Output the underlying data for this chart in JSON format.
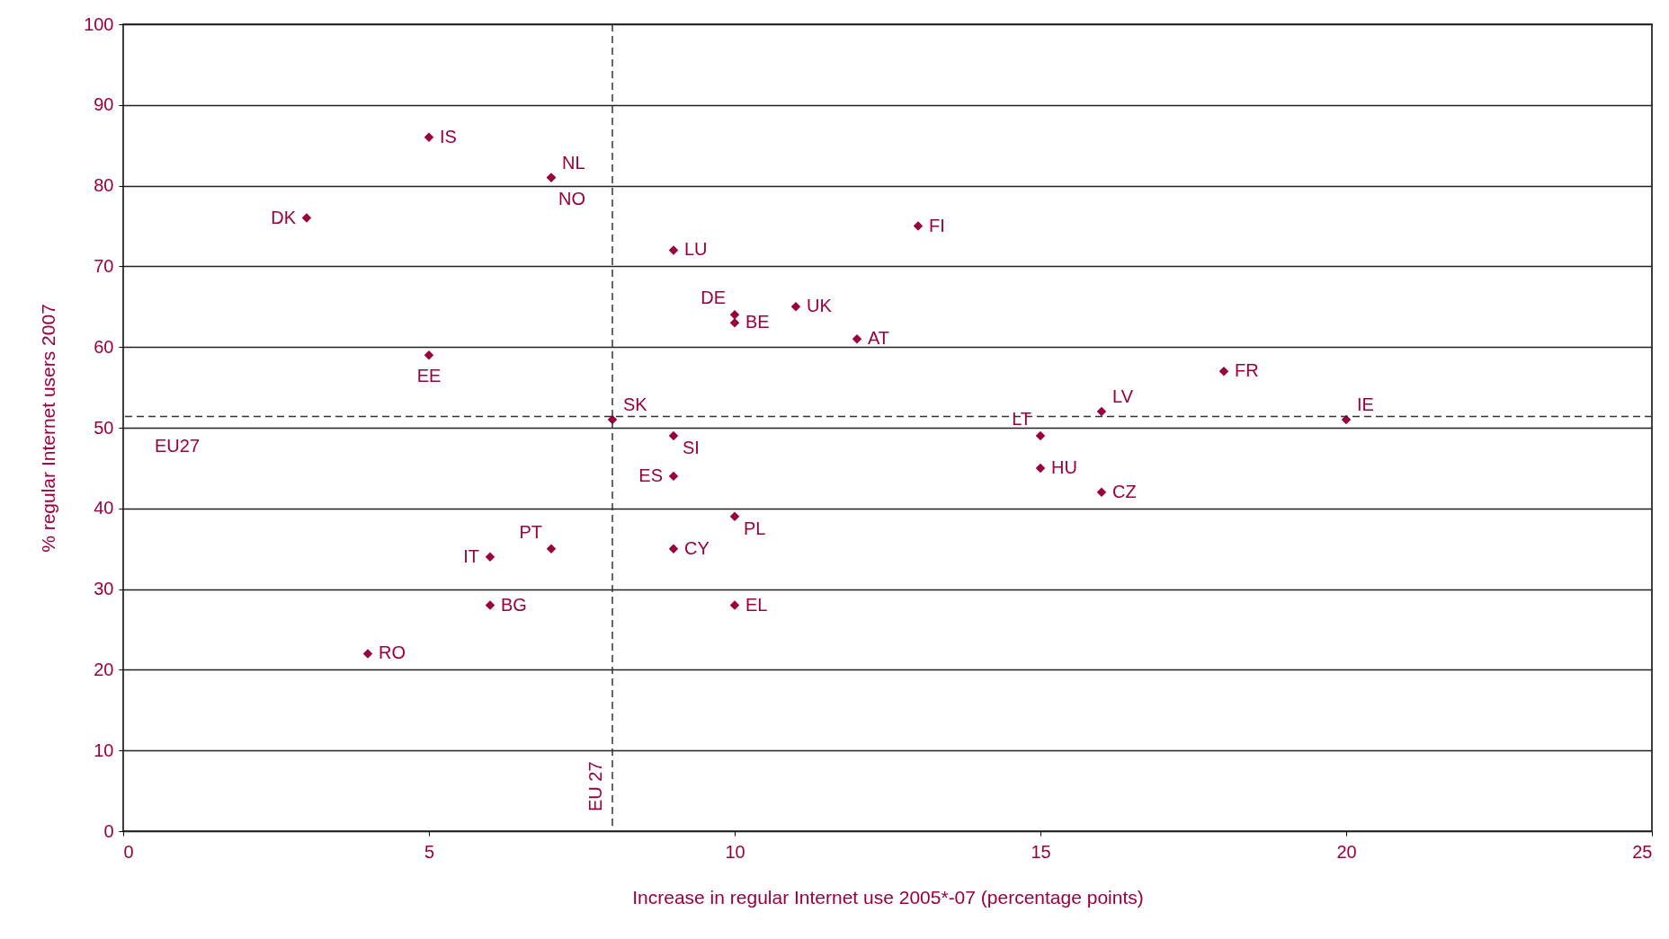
{
  "chart_data": {
    "type": "scatter",
    "xlabel": "Increase in regular Internet use 2005*-07 (percentage points)",
    "ylabel": "% regular Internet users 2007",
    "xlim": [
      0,
      25
    ],
    "xticks": [
      0,
      5,
      10,
      15,
      20,
      25
    ],
    "ylim": [
      0,
      100
    ],
    "yticks": [
      0,
      10,
      20,
      30,
      40,
      50,
      60,
      70,
      80,
      90,
      100
    ],
    "grid": "y",
    "marker": "diamond",
    "series": [
      {
        "color": "#99003d",
        "x": [
          5,
          7,
          7,
          3,
          9,
          13,
          10,
          10,
          11,
          12,
          5,
          18,
          8,
          16,
          20,
          15,
          9,
          15,
          9,
          16,
          10,
          7,
          9,
          6,
          6,
          10,
          4
        ],
        "values": [
          86,
          81,
          81,
          76,
          72,
          75,
          64,
          63,
          65,
          61,
          59,
          57,
          51,
          52,
          51,
          49,
          49,
          45,
          44,
          42,
          39,
          35,
          35,
          34,
          28,
          28,
          22
        ]
      }
    ],
    "annotations": [
      {
        "text": "IS",
        "x": 5,
        "y": 86
      },
      {
        "text": "NL",
        "x": 7,
        "y": 81
      },
      {
        "text": "NO",
        "x": 7,
        "y": 81
      },
      {
        "text": "DK",
        "x": 3,
        "y": 76
      },
      {
        "text": "LU",
        "x": 9,
        "y": 72
      },
      {
        "text": "FI",
        "x": 13,
        "y": 75
      },
      {
        "text": "DE",
        "x": 10,
        "y": 64
      },
      {
        "text": "BE",
        "x": 10,
        "y": 63
      },
      {
        "text": "UK",
        "x": 11,
        "y": 65
      },
      {
        "text": "AT",
        "x": 12,
        "y": 61
      },
      {
        "text": "EE",
        "x": 5,
        "y": 59
      },
      {
        "text": "FR",
        "x": 18,
        "y": 57
      },
      {
        "text": "SK",
        "x": 8,
        "y": 51
      },
      {
        "text": "LV",
        "x": 16,
        "y": 52
      },
      {
        "text": "IE",
        "x": 20,
        "y": 51
      },
      {
        "text": "LT",
        "x": 15,
        "y": 49
      },
      {
        "text": "SI",
        "x": 9,
        "y": 49
      },
      {
        "text": "HU",
        "x": 15,
        "y": 45
      },
      {
        "text": "ES",
        "x": 9,
        "y": 44
      },
      {
        "text": "CZ",
        "x": 16,
        "y": 42
      },
      {
        "text": "PL",
        "x": 10,
        "y": 39
      },
      {
        "text": "PT",
        "x": 7,
        "y": 35
      },
      {
        "text": "CY",
        "x": 9,
        "y": 35
      },
      {
        "text": "IT",
        "x": 6,
        "y": 34
      },
      {
        "text": "BG",
        "x": 6,
        "y": 28
      },
      {
        "text": "EL",
        "x": 10,
        "y": 28
      },
      {
        "text": "RO",
        "x": 4,
        "y": 22
      }
    ],
    "ref_lines": [
      {
        "axis": "x",
        "value": 8,
        "label": "EU 27",
        "line_style": "dashed"
      },
      {
        "axis": "y",
        "value": 51.4,
        "label": "EU27",
        "line_style": "dashed"
      }
    ]
  }
}
